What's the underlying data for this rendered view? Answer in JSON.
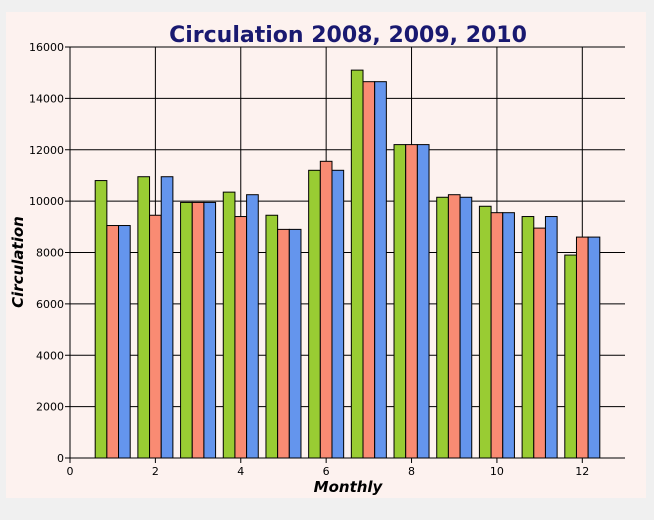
{
  "chart_data": {
    "type": "bar",
    "title": "Circulation 2008, 2009, 2010",
    "xlabel": "Monthly",
    "ylabel": "Circulation",
    "xlim": [
      0,
      13
    ],
    "ylim": [
      0,
      16000
    ],
    "x_ticks": [
      "0",
      "2",
      "4",
      "6",
      "8",
      "10",
      "12"
    ],
    "y_ticks": [
      "0",
      "2000",
      "4000",
      "6000",
      "8000",
      "10000",
      "12000",
      "14000",
      "16000"
    ],
    "grid": true,
    "legend": "none",
    "categories": [
      1,
      2,
      3,
      4,
      5,
      6,
      7,
      8,
      9,
      10,
      11,
      12
    ],
    "series": [
      {
        "name": "2008",
        "color": "#99cc33",
        "values": [
          10800,
          10950,
          9950,
          10350,
          9450,
          11200,
          15100,
          12200,
          10150,
          9800,
          9400,
          7900
        ]
      },
      {
        "name": "2009",
        "color": "#f98b73",
        "values": [
          9050,
          9450,
          9950,
          9400,
          8900,
          11550,
          14650,
          12200,
          10250,
          9550,
          8950,
          8600
        ]
      },
      {
        "name": "2010",
        "color": "#6495ed",
        "values": [
          9050,
          10950,
          9950,
          10250,
          8900,
          11200,
          14650,
          12200,
          10150,
          9550,
          9400,
          8600
        ]
      }
    ]
  }
}
